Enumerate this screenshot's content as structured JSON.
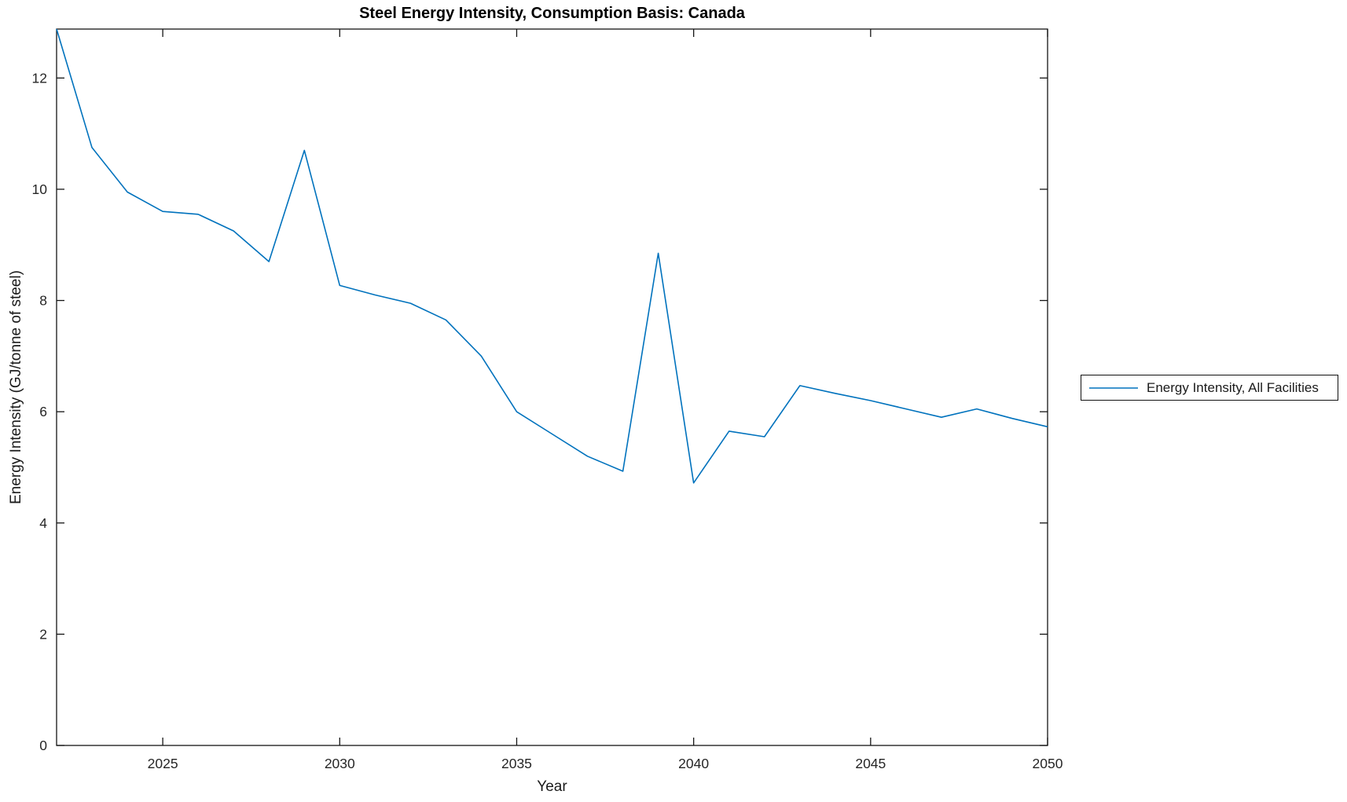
{
  "figure": {
    "background": "#ffffff"
  },
  "chart_data": {
    "type": "line",
    "title": "Steel Energy Intensity, Consumption Basis: Canada",
    "xlabel": "Year",
    "ylabel": "Energy Intensity (GJ/tonne of steel)",
    "x": [
      2022,
      2023,
      2024,
      2025,
      2026,
      2027,
      2028,
      2029,
      2030,
      2031,
      2032,
      2033,
      2034,
      2035,
      2036,
      2037,
      2038,
      2039,
      2040,
      2041,
      2042,
      2043,
      2044,
      2045,
      2046,
      2047,
      2048,
      2049,
      2050
    ],
    "series": [
      {
        "name": "Energy Intensity, All Facilities",
        "color": "#0072BD",
        "values": [
          12.88,
          10.75,
          9.95,
          9.6,
          9.55,
          9.25,
          8.7,
          10.7,
          8.27,
          8.1,
          7.95,
          7.65,
          7.0,
          6.0,
          5.6,
          5.2,
          4.93,
          8.85,
          4.72,
          5.65,
          5.55,
          6.47,
          6.33,
          6.2,
          6.05,
          5.9,
          6.05,
          5.88,
          5.73
        ]
      }
    ],
    "xlim": [
      2022,
      2050
    ],
    "ylim": [
      0,
      12.88
    ],
    "x_ticks": [
      2025,
      2030,
      2035,
      2040,
      2045,
      2050
    ],
    "y_ticks": [
      0,
      2,
      4,
      6,
      8,
      10,
      12
    ],
    "grid": false,
    "legend_position": "right-outside",
    "axis_color": "#151515",
    "tick_label_color": "#262626"
  },
  "legend": {
    "label": "Energy Intensity, All Facilities",
    "line_color": "#0072BD"
  }
}
